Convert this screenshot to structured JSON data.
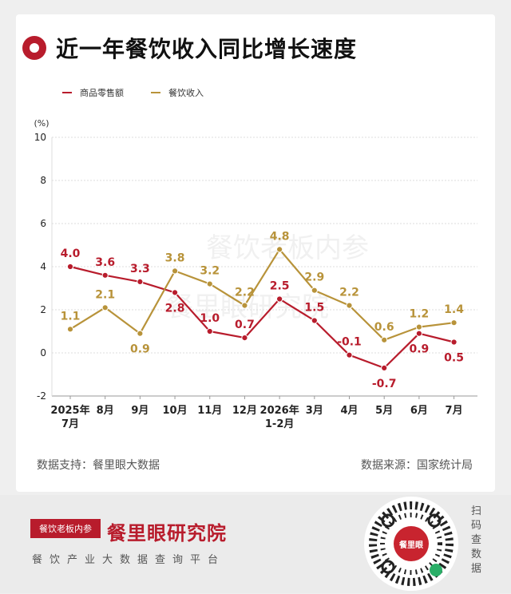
{
  "title": "近一年餐饮收入同比增长速度",
  "chart_data": {
    "type": "line",
    "unit_label": "(%)",
    "categories": [
      "2025年\n7月",
      "8月",
      "9月",
      "10月",
      "11月",
      "12月",
      "2026年\n1-2月",
      "3月",
      "4月",
      "5月",
      "6月",
      "7月"
    ],
    "ylim": [
      -2,
      10
    ],
    "yticks": [
      -2,
      0,
      2,
      4,
      6,
      8,
      10
    ],
    "grid": true,
    "legend_position": "top-left",
    "series": [
      {
        "name": "商品零售额",
        "color": "#b81c2c",
        "values": [
          4.0,
          3.6,
          3.3,
          2.8,
          1.0,
          0.7,
          2.5,
          1.5,
          -0.1,
          -0.7,
          0.9,
          0.5
        ]
      },
      {
        "name": "餐饮收入",
        "color": "#b8933a",
        "values": [
          1.1,
          2.1,
          0.9,
          3.8,
          3.2,
          2.2,
          4.8,
          2.9,
          2.2,
          0.6,
          1.2,
          1.4
        ]
      }
    ]
  },
  "watermark": {
    "line1": "餐饮老板内参",
    "line2": "餐里眼研究院"
  },
  "footer": {
    "support": "数据支持：餐里眼大数据",
    "source": "数据来源：国家统计局"
  },
  "bottom": {
    "logo_text": "餐饮老板内参",
    "brand": "餐里眼研究院",
    "tagline": "餐饮产业大数据查询平台",
    "qr_label": "餐里眼",
    "scan_text": "扫码查数据"
  }
}
